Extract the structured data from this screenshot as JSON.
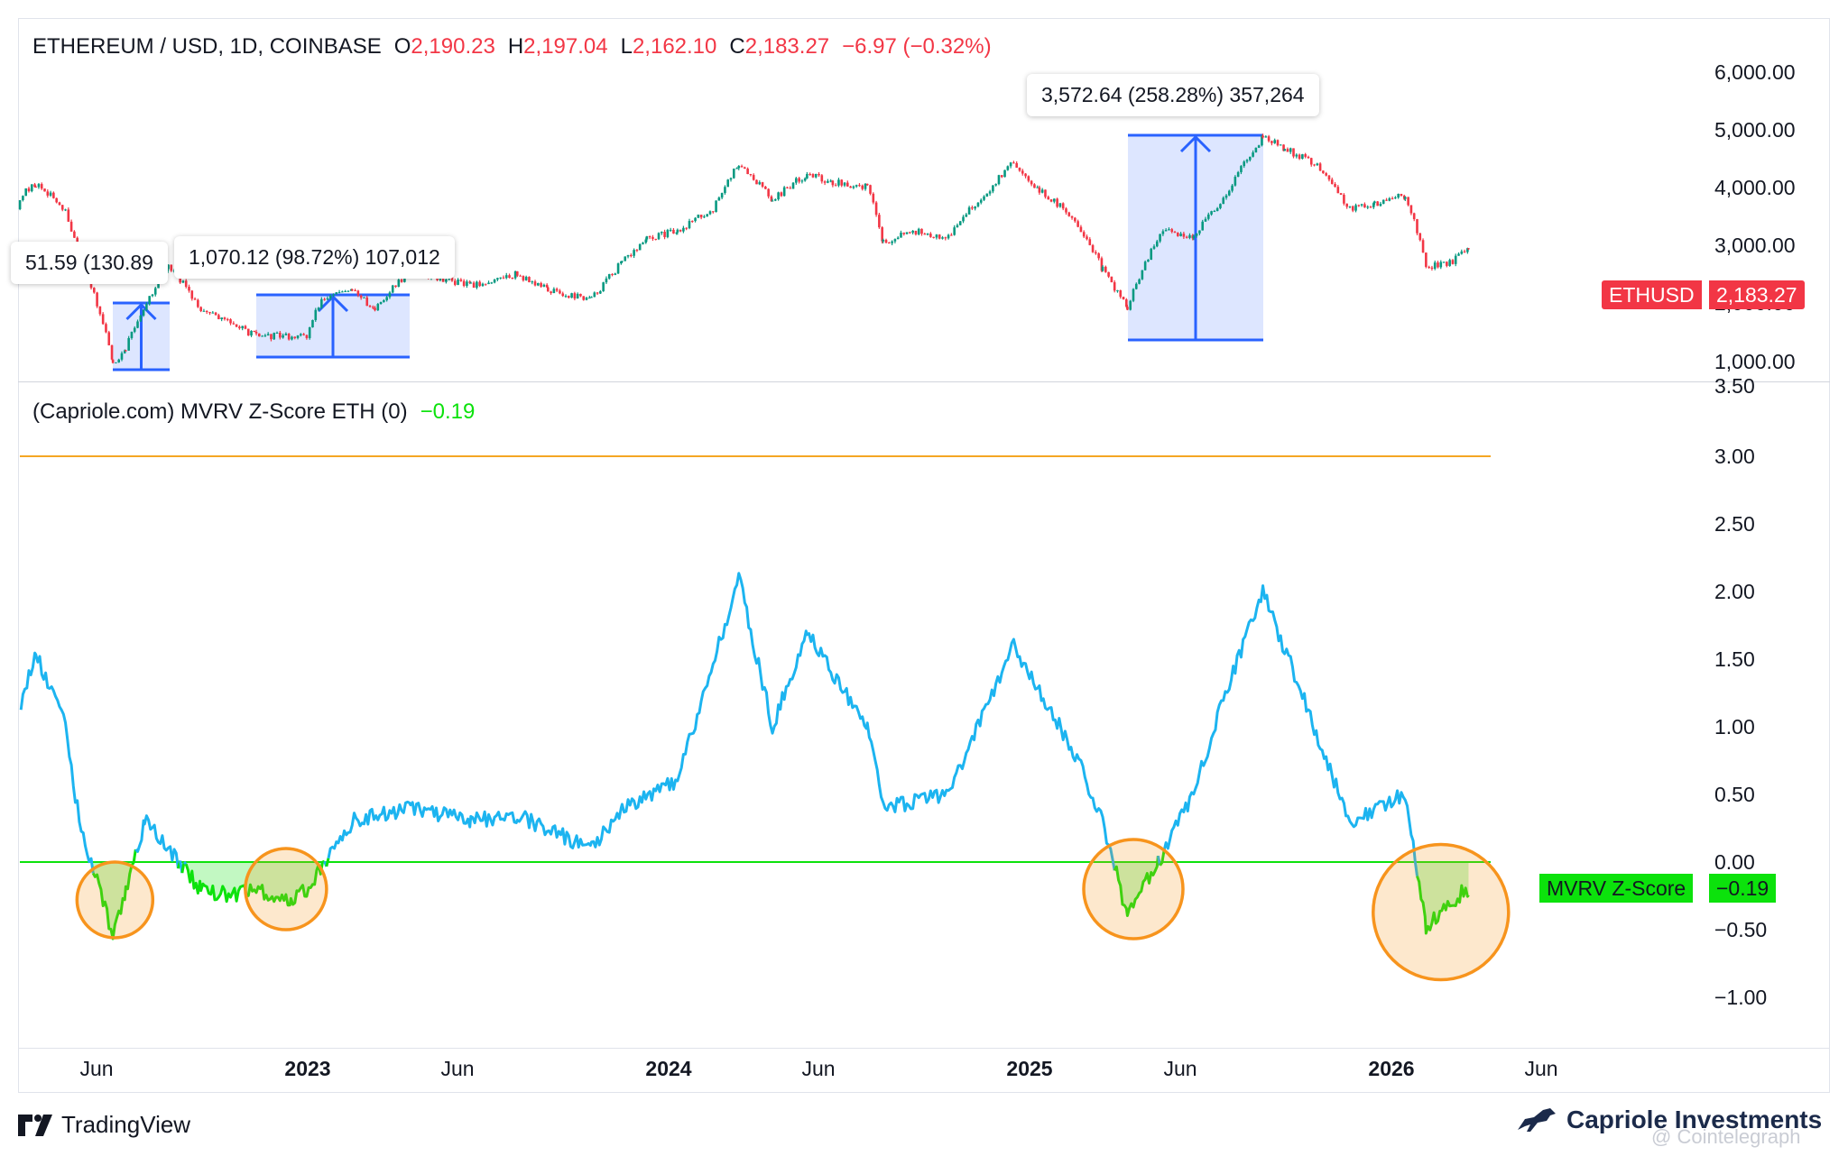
{
  "price_legend": {
    "symbol": "ETHEREUM / USD, 1D, COINBASE",
    "o_label": "O",
    "o_value": "2,190.23",
    "h_label": "H",
    "h_value": "2,197.04",
    "l_label": "L",
    "l_value": "2,162.10",
    "c_label": "C",
    "c_value": "2,183.27",
    "change": "−6.97 (−0.32%)"
  },
  "indicator_legend": {
    "name": "(Capriole.com) MVRV Z-Score ETH (0)",
    "value": "−0.19"
  },
  "badges": {
    "price": {
      "name": "ETHUSD",
      "value": "2,183.27",
      "color": "#f23645"
    },
    "mvrv": {
      "name": "MVRV Z-Score",
      "value": "−0.19",
      "color": "#0ce20c"
    }
  },
  "measure_labels": [
    "51.59 (130.89",
    "1,070.12 (98.72%) 107,012",
    "3,572.64 (258.28%) 357,264"
  ],
  "footer": {
    "tradingview": "TradingView",
    "capriole": "Capriole Investments",
    "watermark": "@ Cointelegraph"
  },
  "colors": {
    "price_up": "#089981",
    "price_down": "#f23645",
    "mvrv_above": "#1cb4f0",
    "mvrv_below": "#0ce20c",
    "threshold_line": "#f5a623",
    "highlight_circle": "#f7941d",
    "measure_box": "#2962ff"
  },
  "chart_data": [
    {
      "type": "line",
      "title": "ETHEREUM / USD, 1D, COINBASE",
      "y_scale": "log",
      "yticks": [
        "1,000.00",
        "2,000.00",
        "3,000.00",
        "4,000.00",
        "5,000.00",
        "6,000.00"
      ],
      "x_labels": [
        "Jun",
        "2023",
        "Jun",
        "2024",
        "Jun",
        "2025",
        "Jun",
        "2026",
        "Jun"
      ],
      "series": [
        {
          "name": "ETHUSD",
          "x": [
            "2022-03-01",
            "2022-04-01",
            "2022-05-01",
            "2022-05-15",
            "2022-06-18",
            "2022-07-01",
            "2022-08-13",
            "2022-09-15",
            "2022-11-10",
            "2022-12-31",
            "2023-01-15",
            "2023-02-15",
            "2023-03-10",
            "2023-04-15",
            "2023-06-15",
            "2023-08-01",
            "2023-09-01",
            "2023-10-15",
            "2023-11-15",
            "2023-12-10",
            "2024-01-10",
            "2024-02-15",
            "2024-03-12",
            "2024-04-15",
            "2024-05-20",
            "2024-06-15",
            "2024-07-20",
            "2024-08-05",
            "2024-09-01",
            "2024-10-10",
            "2024-11-15",
            "2024-12-15",
            "2025-01-10",
            "2025-02-15",
            "2025-03-15",
            "2025-04-09",
            "2025-05-15",
            "2025-06-15",
            "2025-07-15",
            "2025-08-24",
            "2025-09-15",
            "2025-10-15",
            "2025-11-20",
            "2025-12-15",
            "2026-01-15",
            "2026-02-05",
            "2026-03-01",
            "2026-03-20"
          ],
          "values": [
            2900,
            3450,
            2900,
            2050,
            1000,
            1100,
            1950,
            1450,
            1200,
            1200,
            1550,
            1650,
            1450,
            1900,
            1700,
            1850,
            1650,
            1550,
            2000,
            2350,
            2500,
            2900,
            4000,
            3100,
            3700,
            3500,
            3400,
            2300,
            2500,
            2400,
            3200,
            4000,
            3300,
            2700,
            1900,
            1450,
            2500,
            2400,
            3100,
            4800,
            4400,
            4000,
            2900,
            3000,
            3200,
            1950,
            2000,
            2183.27
          ]
        }
      ],
      "measurements": [
        {
          "label": "51.59 (130.89",
          "from": 985,
          "to": 2060
        },
        {
          "label": "1,070.12 (98.72%) 107,012",
          "from": 1090,
          "to": 2160
        },
        {
          "label": "3,572.64 (258.28%) 357,264",
          "from": 1385,
          "to": 4955
        }
      ]
    },
    {
      "type": "line",
      "title": "(Capriole.com) MVRV Z-Score ETH (0)",
      "yticks": [
        "−1.00",
        "−0.50",
        "0.00",
        "0.50",
        "1.00",
        "1.50",
        "2.00",
        "2.50",
        "3.00",
        "3.50"
      ],
      "threshold_lines": [
        3.0,
        0.0
      ],
      "series": [
        {
          "name": "MVRV Z-Score",
          "x": [
            "2022-03-01",
            "2022-04-01",
            "2022-05-01",
            "2022-05-15",
            "2022-06-18",
            "2022-07-01",
            "2022-07-20",
            "2022-08-13",
            "2022-09-15",
            "2022-10-15",
            "2022-11-10",
            "2022-12-15",
            "2022-12-31",
            "2023-02-15",
            "2023-04-15",
            "2023-06-15",
            "2023-08-01",
            "2023-10-15",
            "2023-11-15",
            "2024-01-10",
            "2024-03-12",
            "2024-04-15",
            "2024-05-20",
            "2024-07-20",
            "2024-08-05",
            "2024-10-10",
            "2024-12-15",
            "2025-02-15",
            "2025-03-15",
            "2025-04-09",
            "2025-05-10",
            "2025-06-15",
            "2025-07-15",
            "2025-08-24",
            "2025-10-15",
            "2025-11-20",
            "2026-01-15",
            "2026-02-05",
            "2026-03-01",
            "2026-03-20"
          ],
          "values": [
            0.7,
            1.55,
            1.0,
            0.3,
            -0.55,
            -0.2,
            0.3,
            0.1,
            -0.2,
            -0.25,
            -0.2,
            -0.3,
            -0.2,
            0.3,
            0.4,
            0.3,
            0.35,
            0.1,
            0.4,
            0.6,
            2.1,
            1.0,
            1.7,
            1.0,
            0.4,
            0.5,
            1.6,
            0.8,
            0.3,
            -0.4,
            0.0,
            0.5,
            1.2,
            2.0,
            1.0,
            0.3,
            0.5,
            -0.5,
            -0.3,
            -0.19
          ]
        }
      ],
      "highlights": [
        "2022-06",
        "2022-12",
        "2025-04",
        "2026-02"
      ]
    }
  ]
}
